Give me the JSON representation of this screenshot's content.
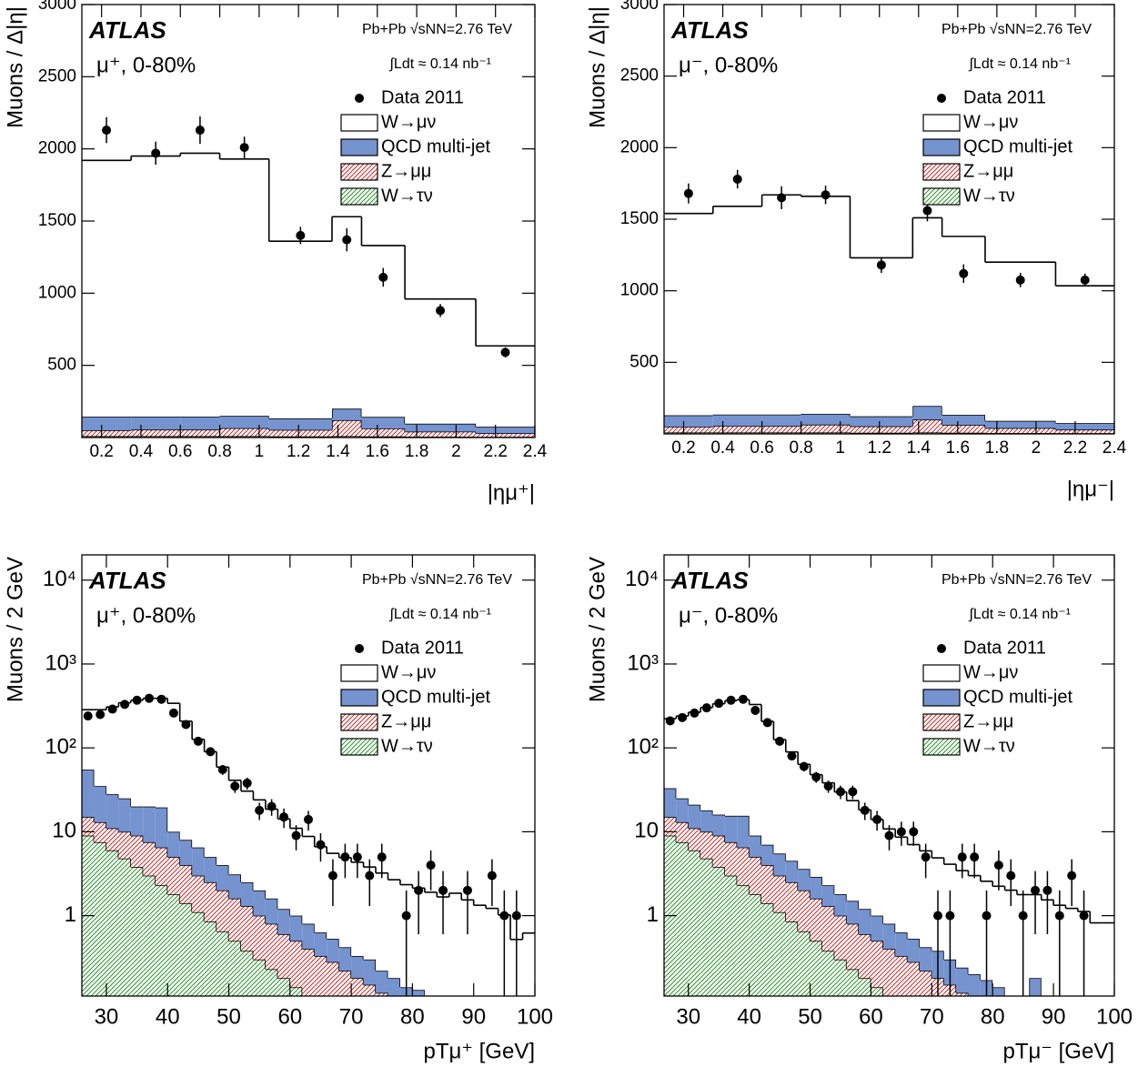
{
  "chart_data": [
    {
      "type": "histogram",
      "log_y": false,
      "y_label": "Muons / Δ|η|",
      "x_label": "|ημ⁺|",
      "experiment": "ATLAS",
      "selection": "μ⁺, 0-80%",
      "energy": "Pb+Pb √sNN=2.76 TeV",
      "luminosity": "∫Ldt ≈ 0.14 nb⁻¹",
      "xlim": [
        0.1,
        2.4
      ],
      "ylim": [
        0,
        3000
      ],
      "xticks": [
        0.2,
        0.4,
        0.6,
        0.8,
        1,
        1.2,
        1.4,
        1.6,
        1.8,
        2,
        2.2,
        2.4
      ],
      "yticks": [
        500,
        1000,
        1500,
        2000,
        2500,
        3000
      ],
      "bins": [
        0.1,
        0.35,
        0.6,
        0.8,
        1.05,
        1.37,
        1.52,
        1.74,
        2.1,
        2.4
      ],
      "data": {
        "name": "Data 2011",
        "color": "#000000",
        "values": [
          2130,
          1970,
          2130,
          2010,
          1400,
          1370,
          1110,
          880,
          590
        ],
        "errors": [
          90,
          80,
          95,
          75,
          60,
          80,
          65,
          45,
          35
        ]
      },
      "stack": [
        {
          "name": "W→μν",
          "color": "#ffffff",
          "values": [
            1775,
            1805,
            1825,
            1780,
            1227,
            1330,
            1187,
            864,
            560
          ]
        },
        {
          "name": "QCD multi-jet",
          "color": "#7593cf",
          "values": [
            95,
            90,
            90,
            85,
            80,
            80,
            80,
            55,
            45
          ]
        },
        {
          "name": "Z→μμ",
          "color": "#cc3333",
          "hatch": true,
          "values": [
            40,
            45,
            45,
            55,
            45,
            110,
            55,
            35,
            25
          ]
        },
        {
          "name": "W→τν",
          "color": "#339933",
          "hatch": true,
          "values": [
            10,
            10,
            10,
            10,
            8,
            10,
            8,
            6,
            5
          ]
        }
      ]
    },
    {
      "type": "histogram",
      "log_y": false,
      "y_label": "Muons / Δ|η|",
      "x_label": "|ημ⁻|",
      "experiment": "ATLAS",
      "selection": "μ⁻, 0-80%",
      "energy": "Pb+Pb √sNN=2.76 TeV",
      "luminosity": "∫Ldt ≈ 0.14 nb⁻¹",
      "xlim": [
        0.1,
        2.4
      ],
      "ylim": [
        0,
        3000
      ],
      "xticks": [
        0.2,
        0.4,
        0.6,
        0.8,
        1,
        1.2,
        1.4,
        1.6,
        1.8,
        2,
        2.2,
        2.4
      ],
      "yticks": [
        500,
        1000,
        1500,
        2000,
        2500,
        3000
      ],
      "bins": [
        0.1,
        0.35,
        0.6,
        0.8,
        1.05,
        1.37,
        1.52,
        1.74,
        2.1,
        2.4
      ],
      "data": {
        "name": "Data 2011",
        "color": "#000000",
        "values": [
          1680,
          1780,
          1650,
          1670,
          1180,
          1560,
          1120,
          1075,
          1075
        ],
        "errors": [
          70,
          65,
          80,
          65,
          55,
          75,
          65,
          50,
          45
        ]
      },
      "stack": [
        {
          "name": "W→μν",
          "color": "#ffffff",
          "values": [
            1410,
            1455,
            1535,
            1520,
            1107,
            1315,
            1247,
            1109,
            960
          ]
        },
        {
          "name": "QCD multi-jet",
          "color": "#7593cf",
          "values": [
            80,
            80,
            80,
            75,
            70,
            95,
            70,
            50,
            45
          ]
        },
        {
          "name": "Z→μμ",
          "color": "#cc3333",
          "hatch": true,
          "values": [
            40,
            45,
            45,
            55,
            45,
            90,
            55,
            35,
            25
          ]
        },
        {
          "name": "W→τν",
          "color": "#339933",
          "hatch": true,
          "values": [
            10,
            10,
            10,
            10,
            8,
            10,
            8,
            6,
            5
          ]
        }
      ]
    },
    {
      "type": "histogram",
      "log_y": true,
      "y_label": "Muons / 2 GeV",
      "x_label": "pTμ⁺ [GeV]",
      "experiment": "ATLAS",
      "selection": "μ⁺, 0-80%",
      "energy": "Pb+Pb √sNN=2.76 TeV",
      "luminosity": "∫Ldt ≈ 0.14 nb⁻¹",
      "xlim": [
        26,
        100
      ],
      "ylim": [
        0.11,
        20000
      ],
      "xticks": [
        30,
        40,
        50,
        60,
        70,
        80,
        90,
        100
      ],
      "yticks": [
        1,
        10,
        {
          "value": 100,
          "label": "10²"
        },
        {
          "value": 1000,
          "label": "10³"
        },
        {
          "value": 10000,
          "label": "10⁴"
        }
      ],
      "bins": [
        26,
        28,
        30,
        32,
        34,
        36,
        38,
        40,
        42,
        44,
        46,
        48,
        50,
        52,
        54,
        56,
        58,
        60,
        62,
        64,
        66,
        68,
        70,
        72,
        74,
        76,
        78,
        80,
        82,
        84,
        86,
        88,
        90,
        92,
        94,
        96,
        98,
        100
      ],
      "data": {
        "name": "Data 2011",
        "color": "#000000",
        "values": [
          240,
          250,
          290,
          330,
          370,
          390,
          380,
          260,
          190,
          120,
          90,
          55,
          35,
          38,
          18,
          20,
          15,
          9,
          14,
          7,
          3,
          5,
          5,
          3,
          5,
          null,
          1,
          2,
          4,
          2,
          null,
          2,
          null,
          3,
          1,
          1,
          null
        ],
        "errors": [
          15.5,
          15.8,
          17,
          18.2,
          19.2,
          19.7,
          19.5,
          16.1,
          13.8,
          11,
          9.5,
          7.4,
          5.9,
          6.2,
          4.2,
          4.5,
          3.9,
          3,
          3.7,
          2.6,
          1.7,
          2.2,
          2.2,
          1.7,
          2.2,
          null,
          1,
          1.4,
          2,
          1.4,
          null,
          1.4,
          null,
          1.7,
          1,
          1,
          null
        ]
      },
      "stack": [
        {
          "name": "W→μν",
          "color": "#ffffff",
          "values": [
            230,
            250,
            280,
            320,
            350,
            370,
            370,
            330,
            200,
            120,
            85,
            55,
            38,
            28,
            22,
            17,
            13,
            10,
            8,
            6,
            5,
            4.5,
            4,
            3.5,
            3,
            2.5,
            2.2,
            2,
            1.8,
            1.6,
            1.8,
            1.5,
            1.3,
            1.2,
            1,
            0.5,
            0.6
          ]
        },
        {
          "name": "QCD multi-jet",
          "color": "#7593cf",
          "values": [
            40,
            22,
            17,
            15,
            11,
            12.5,
            13,
            5,
            4,
            3.5,
            2.5,
            2,
            1.5,
            1.2,
            1,
            0.8,
            0.6,
            0.5,
            0.4,
            0.3,
            0.25,
            0.2,
            0.15,
            0.15,
            0.1,
            0.08,
            0.05,
            0.05,
            0.04,
            0.03,
            0.02,
            0.02,
            0.01,
            0.01,
            0.01,
            0.01,
            0.01
          ]
        },
        {
          "name": "Z→μμ",
          "color": "#cc3333",
          "hatch": true,
          "values": [
            6,
            5.5,
            5,
            5.2,
            5.2,
            4.5,
            4.2,
            3.2,
            2.6,
            1.9,
            1.65,
            1.35,
            1.1,
            0.92,
            0.7,
            0.57,
            0.42,
            0.36,
            0.29,
            0.24,
            0.21,
            0.17,
            0.14,
            0.12,
            0.1,
            0.08,
            0.08,
            0.07,
            0.05,
            0.04,
            0.03,
            0.02,
            0.02,
            0.01,
            0.01,
            0.01,
            0.01
          ]
        },
        {
          "name": "W→τν",
          "color": "#339933",
          "hatch": true,
          "values": [
            9,
            7.5,
            6,
            4.8,
            3.8,
            3,
            2.3,
            1.8,
            1.4,
            1.1,
            0.85,
            0.65,
            0.5,
            0.38,
            0.3,
            0.23,
            0.18,
            0.14,
            0.11,
            0.09,
            0.07,
            0.05,
            0.04,
            0.03,
            0.02,
            0.02,
            0.01,
            0.01,
            0.01,
            0,
            0,
            0,
            0,
            0,
            0,
            0,
            0
          ]
        }
      ]
    },
    {
      "type": "histogram",
      "log_y": true,
      "y_label": "Muons / 2 GeV",
      "x_label": "pTμ⁻ [GeV]",
      "experiment": "ATLAS",
      "selection": "μ⁻, 0-80%",
      "energy": "Pb+Pb √sNN=2.76 TeV",
      "luminosity": "∫Ldt ≈ 0.14 nb⁻¹",
      "xlim": [
        26,
        100
      ],
      "ylim": [
        0.11,
        20000
      ],
      "xticks": [
        30,
        40,
        50,
        60,
        70,
        80,
        90,
        100
      ],
      "yticks": [
        1,
        10,
        {
          "value": 100,
          "label": "10²"
        },
        {
          "value": 1000,
          "label": "10³"
        },
        {
          "value": 10000,
          "label": "10⁴"
        }
      ],
      "bins": [
        26,
        28,
        30,
        32,
        34,
        36,
        38,
        40,
        42,
        44,
        46,
        48,
        50,
        52,
        54,
        56,
        58,
        60,
        62,
        64,
        66,
        68,
        70,
        72,
        74,
        76,
        78,
        80,
        82,
        84,
        86,
        88,
        90,
        92,
        94,
        96,
        98,
        100
      ],
      "data": {
        "name": "Data 2011",
        "color": "#000000",
        "values": [
          210,
          230,
          260,
          300,
          340,
          370,
          380,
          280,
          200,
          120,
          80,
          60,
          45,
          35,
          30,
          30,
          18,
          14,
          9,
          10,
          10,
          5,
          1,
          1,
          5,
          5,
          1,
          4,
          3,
          1,
          2,
          2,
          1,
          3,
          1,
          null,
          null
        ],
        "errors": [
          14.5,
          15.2,
          16.1,
          17.3,
          18.4,
          19.2,
          19.5,
          16.7,
          14.1,
          11,
          8.9,
          7.7,
          6.7,
          5.9,
          5.5,
          5.5,
          4.2,
          3.7,
          3,
          3.2,
          3.2,
          2.2,
          1,
          1,
          2.2,
          2.2,
          1,
          2,
          1.7,
          1,
          1.4,
          1.4,
          1,
          1.7,
          1,
          null,
          null
        ]
      },
      "stack": [
        {
          "name": "W→μν",
          "color": "#ffffff",
          "values": [
            190,
            215,
            245,
            285,
            320,
            350,
            360,
            320,
            200,
            120,
            85,
            60,
            45,
            36,
            28,
            22,
            17,
            13,
            10,
            8,
            6.5,
            5.5,
            4.5,
            3.8,
            3.2,
            2.8,
            2.4,
            2.1,
            1.9,
            1.7,
            1.6,
            1.5,
            1.3,
            1.2,
            1.1,
            0.8,
            0.8
          ]
        },
        {
          "name": "QCD multi-jet",
          "color": "#7593cf",
          "values": [
            18,
            12,
            10,
            8,
            7,
            8,
            9,
            4,
            3,
            2.5,
            2,
            1.6,
            1.3,
            1,
            0.8,
            0.7,
            0.6,
            0.5,
            0.4,
            0.3,
            0.25,
            0.2,
            0.2,
            0.15,
            0.12,
            0.1,
            0.08,
            0.06,
            0.05,
            0.04,
            0.15,
            0.02,
            0.01,
            0.01,
            0.01,
            0.01,
            0.01
          ]
        },
        {
          "name": "Z→μμ",
          "color": "#cc3333",
          "hatch": true,
          "values": [
            6,
            5.5,
            5,
            5.2,
            5.2,
            4.5,
            4.2,
            3.2,
            2.6,
            1.9,
            1.65,
            1.35,
            1.1,
            0.92,
            0.7,
            0.57,
            0.42,
            0.36,
            0.29,
            0.24,
            0.21,
            0.17,
            0.14,
            0.12,
            0.1,
            0.08,
            0.08,
            0.07,
            0.05,
            0.04,
            0.03,
            0.02,
            0.02,
            0.01,
            0.01,
            0.01,
            0.01
          ]
        },
        {
          "name": "W→τν",
          "color": "#339933",
          "hatch": true,
          "values": [
            9,
            7.5,
            6,
            4.8,
            3.8,
            3,
            2.3,
            1.8,
            1.4,
            1.1,
            0.85,
            0.65,
            0.5,
            0.38,
            0.3,
            0.23,
            0.18,
            0.14,
            0.11,
            0.09,
            0.07,
            0.05,
            0.04,
            0.03,
            0.02,
            0.02,
            0.01,
            0.01,
            0.01,
            0,
            0,
            0,
            0,
            0,
            0,
            0,
            0
          ]
        }
      ]
    }
  ]
}
